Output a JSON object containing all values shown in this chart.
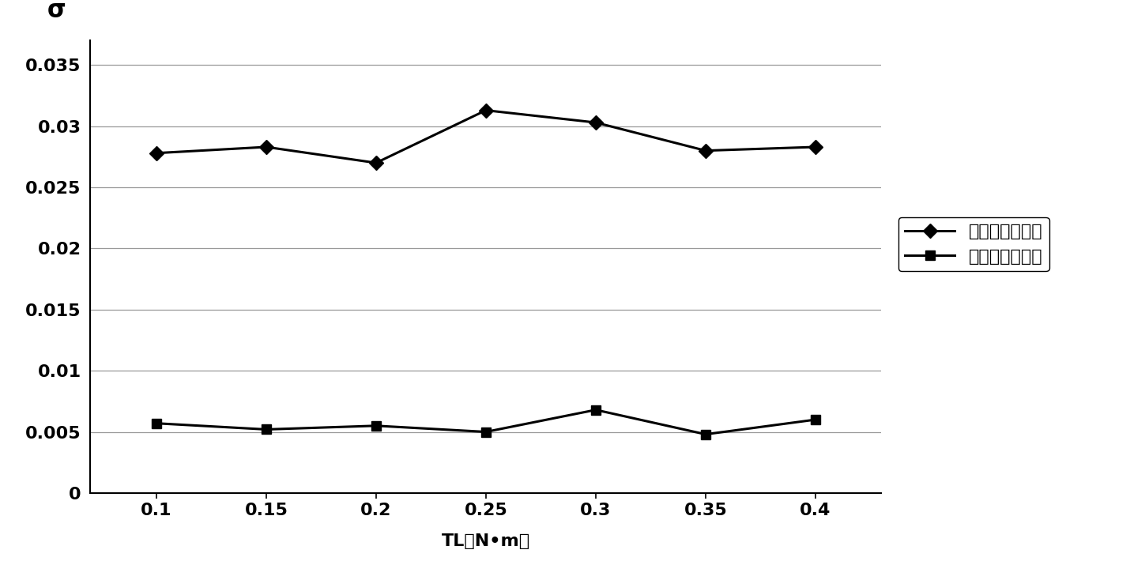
{
  "x": [
    0.1,
    0.15,
    0.2,
    0.25,
    0.3,
    0.35,
    0.4
  ],
  "normal": [
    0.0278,
    0.0283,
    0.027,
    0.0313,
    0.0303,
    0.028,
    0.0283
  ],
  "fault": [
    0.0057,
    0.0052,
    0.0055,
    0.005,
    0.0068,
    0.0048,
    0.006
  ],
  "x_ticks": [
    0.1,
    0.15,
    0.2,
    0.25,
    0.3,
    0.35,
    0.4
  ],
  "x_tick_labels": [
    "0.1",
    "0.15",
    "0.2",
    "0.25",
    "0.3",
    "0.35",
    "0.4"
  ],
  "y_ticks": [
    0,
    0.005,
    0.01,
    0.015,
    0.02,
    0.025,
    0.03,
    0.035
  ],
  "y_tick_labels": [
    "0",
    "0.005",
    "0.01",
    "0.015",
    "0.02",
    "0.025",
    "0.03",
    "0.035"
  ],
  "ylim": [
    0,
    0.037
  ],
  "xlim": [
    0.07,
    0.43
  ],
  "ylabel": "σ",
  "xlabel": "TL（N•m）",
  "legend_normal": "标准差（正常）",
  "legend_fault": "标准差（故障）",
  "line_color": "#000000",
  "marker_normal": "D",
  "marker_fault": "s",
  "linewidth": 2.2,
  "markersize": 9,
  "background_color": "#ffffff",
  "grid_color": "#999999",
  "tick_fontsize": 16,
  "label_fontsize": 16,
  "legend_fontsize": 16
}
